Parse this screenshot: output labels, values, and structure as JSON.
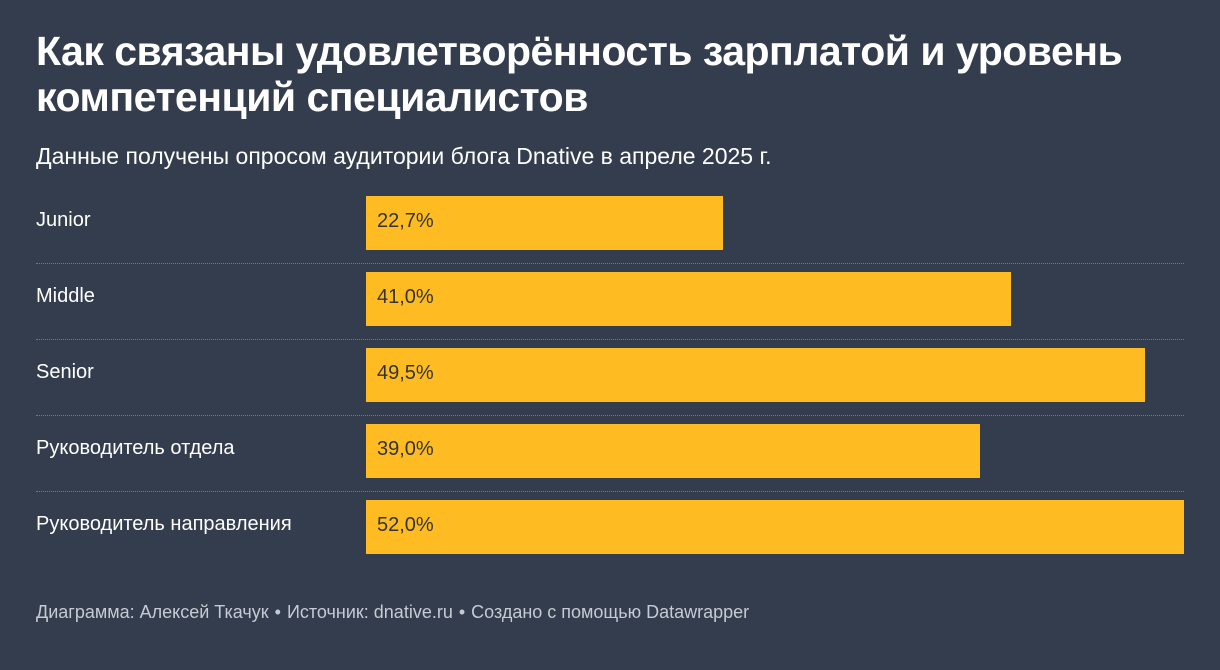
{
  "header": {
    "title": "Как связаны удовлетворённость зарплатой и уровень компетенций специалистов",
    "subtitle": "Данные получены опросом аудитории блога Dnative в апреле 2025 г."
  },
  "chart_data": {
    "type": "bar",
    "orientation": "horizontal",
    "title": "Как связаны удовлетворённость зарплатой и уровень компетенций специалистов",
    "subtitle": "Данные получены опросом аудитории блога Dnative в апреле 2025 г.",
    "categories": [
      "Junior",
      "Middle",
      "Senior",
      "Руководитель отдела",
      "Руководитель направления"
    ],
    "values": [
      22.7,
      41.0,
      49.5,
      39.0,
      52.0
    ],
    "value_labels": [
      "22,7%",
      "41,0%",
      "49,5%",
      "39,0%",
      "52,0%"
    ],
    "unit": "%",
    "xlim": [
      0,
      52
    ],
    "xlabel": "",
    "ylabel": "",
    "grid": false,
    "bar_color": "#ffbc22"
  },
  "footer": {
    "credit": "Диаграмма: Алексей Ткачук",
    "source": "Источник: dnative.ru",
    "tool": "Создано с помощью Datawrapper",
    "separator": "•"
  },
  "colors": {
    "background": "#333d4d",
    "bar": "#ffbc22",
    "text": "#ffffff",
    "footer_text": "#c6cbd3"
  }
}
